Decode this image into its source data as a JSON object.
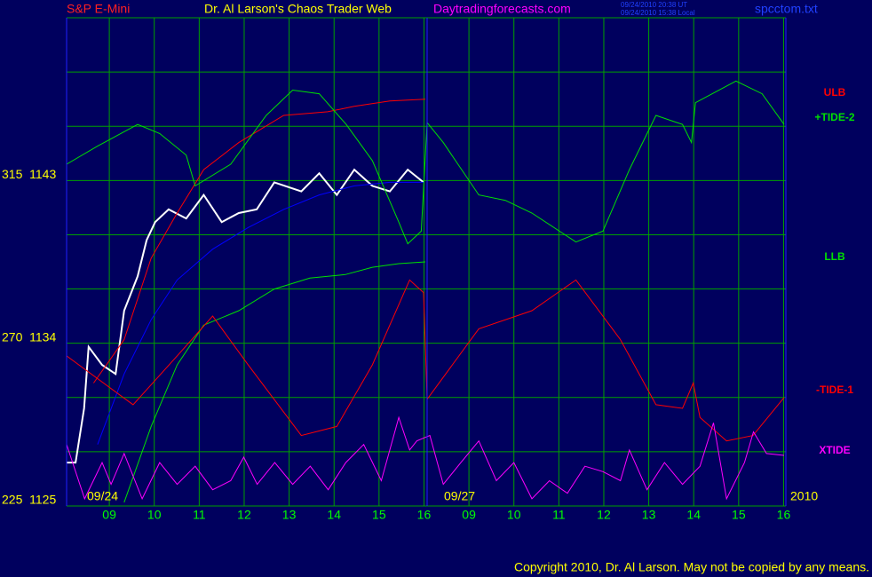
{
  "chart_data": {
    "type": "line",
    "label": "S&P E-Mini",
    "title": "Dr. Al Larson's Chaos Trader Web",
    "site": "Daytradingforecasts.com",
    "timestamps": [
      "09/24/2010 20:38 UT",
      "09/24/2010 15:38 Local"
    ],
    "file": "spcctom.txt",
    "annotations": [
      "09/24",
      "09/27",
      "2010"
    ],
    "copyright": "Copyright 2010, Dr. Al Larson. May not be copied by any means.",
    "xlim": [
      0.05,
      16.05
    ],
    "xticks": [
      {
        "value": 1,
        "label": "09"
      },
      {
        "value": 2,
        "label": "10"
      },
      {
        "value": 3,
        "label": "11"
      },
      {
        "value": 4,
        "label": "12"
      },
      {
        "value": 5,
        "label": "13"
      },
      {
        "value": 6,
        "label": "14"
      },
      {
        "value": 7,
        "label": "15"
      },
      {
        "value": 8,
        "label": "16"
      },
      {
        "value": 9,
        "label": "09"
      },
      {
        "value": 10,
        "label": "10"
      },
      {
        "value": 11,
        "label": "11"
      },
      {
        "value": 12,
        "label": "12"
      },
      {
        "value": 13,
        "label": "13"
      },
      {
        "value": 14,
        "label": "14"
      },
      {
        "value": 15,
        "label": "15"
      },
      {
        "value": 16,
        "label": "16"
      }
    ],
    "ylim": [
      1125,
      1152
    ],
    "yticks": [
      {
        "value": 1125,
        "label": "225  1125"
      },
      {
        "value": 1134,
        "label": "270  1134"
      },
      {
        "value": 1143,
        "label": "315  1143"
      }
    ],
    "ygrid": [
      1128,
      1131,
      1137,
      1140,
      1146,
      1149,
      1152
    ],
    "grid": true,
    "series": [
      {
        "color": "#ffffff",
        "x": [
          0.05,
          0.25,
          0.44,
          0.54,
          0.84,
          1.14,
          1.33,
          1.63,
          1.83,
          2.02,
          2.32,
          2.71,
          3.1,
          3.5,
          3.88,
          4.28,
          4.67,
          5.27,
          5.67,
          6.06,
          6.45,
          6.85,
          7.24,
          7.64,
          7.99
        ],
        "values": [
          1127.4,
          1127.4,
          1130.4,
          1133.8,
          1132.8,
          1132.3,
          1135.8,
          1137.7,
          1139.7,
          1140.7,
          1141.4,
          1140.9,
          1142.2,
          1140.7,
          1141.2,
          1141.4,
          1142.9,
          1142.4,
          1143.4,
          1142.2,
          1143.6,
          1142.7,
          1142.4,
          1143.6,
          1142.9
        ]
      },
      {
        "color": "#0000ff",
        "x": [
          0.74,
          1.33,
          1.93,
          2.51,
          3.3,
          4.09,
          4.88,
          5.67,
          6.45,
          7.24,
          7.99
        ],
        "values": [
          1128.4,
          1132.3,
          1135.3,
          1137.5,
          1139.2,
          1140.4,
          1141.4,
          1142.2,
          1142.7,
          1142.9,
          1142.9
        ]
      },
      {
        "name": "ULB",
        "color": "#ff0000",
        "x": [
          0.65,
          1.33,
          1.93,
          2.51,
          3.1,
          3.88,
          4.88,
          5.86,
          6.45,
          7.24,
          8.03
        ],
        "values": [
          1131.8,
          1134.2,
          1138.7,
          1141.2,
          1143.6,
          1145.1,
          1146.6,
          1146.8,
          1147.1,
          1147.4,
          1147.5
        ]
      },
      {
        "name": "+TIDE-2",
        "color": "#00e000",
        "x": [
          0.05,
          0.74,
          1.63,
          2.12,
          2.71,
          2.91,
          3.7,
          4.49,
          5.08,
          5.67,
          6.27,
          6.85,
          7.44,
          7.64,
          7.94,
          8.07,
          8.43,
          9.22,
          9.81,
          10.4,
          11.38,
          11.98,
          12.57,
          13.16,
          13.75,
          13.95,
          14.04,
          14.94,
          15.52,
          16.01
        ],
        "values": [
          1143.9,
          1144.9,
          1146.1,
          1145.6,
          1144.4,
          1142.7,
          1143.9,
          1146.6,
          1148.0,
          1147.8,
          1146.1,
          1144.1,
          1140.7,
          1139.5,
          1140.2,
          1146.2,
          1145.1,
          1142.2,
          1141.9,
          1141.2,
          1139.6,
          1140.2,
          1143.6,
          1146.6,
          1146.1,
          1145.1,
          1147.3,
          1148.5,
          1147.8,
          1146.1
        ]
      },
      {
        "name": "LLB",
        "color": "#00e000",
        "x": [
          1.33,
          1.93,
          2.51,
          3.1,
          3.88,
          4.67,
          5.46,
          6.25,
          6.85,
          7.44,
          8.03
        ],
        "values": [
          1125.2,
          1129.4,
          1132.8,
          1135.0,
          1135.8,
          1137.0,
          1137.6,
          1137.8,
          1138.2,
          1138.4,
          1138.5
        ]
      },
      {
        "name": "-TIDE-1",
        "color": "#ff0000",
        "x": [
          0.05,
          1.53,
          2.51,
          3.3,
          4.09,
          5.27,
          6.06,
          6.85,
          7.68,
          7.99,
          8.07,
          9.22,
          10.4,
          11.38,
          12.37,
          13.16,
          13.75,
          13.99,
          14.14,
          14.73,
          15.32,
          16.01
        ],
        "values": [
          1133.3,
          1130.6,
          1133.3,
          1135.5,
          1132.8,
          1128.9,
          1129.4,
          1132.8,
          1137.5,
          1136.8,
          1130.9,
          1134.8,
          1135.8,
          1137.5,
          1134.2,
          1130.6,
          1130.4,
          1131.8,
          1129.9,
          1128.6,
          1128.9,
          1131.0
        ]
      },
      {
        "name": "XTIDE",
        "color": "#ff00ff",
        "x": [
          0.05,
          0.45,
          0.84,
          1.04,
          1.33,
          1.73,
          2.12,
          2.51,
          2.91,
          3.3,
          3.7,
          3.99,
          4.29,
          4.68,
          5.08,
          5.47,
          5.87,
          6.26,
          6.66,
          7.05,
          7.44,
          7.68,
          7.84,
          8.13,
          8.43,
          8.82,
          9.22,
          9.61,
          10.0,
          10.4,
          10.79,
          11.19,
          11.58,
          11.98,
          12.37,
          12.57,
          12.96,
          13.35,
          13.75,
          14.14,
          14.44,
          14.73,
          15.13,
          15.33,
          15.62,
          16.01
        ],
        "values": [
          1128.4,
          1125.4,
          1127.4,
          1126.2,
          1127.9,
          1125.4,
          1127.4,
          1126.2,
          1127.2,
          1125.9,
          1126.4,
          1127.7,
          1126.2,
          1127.4,
          1126.2,
          1127.2,
          1125.9,
          1127.4,
          1128.4,
          1126.4,
          1129.9,
          1128.1,
          1128.6,
          1128.9,
          1126.2,
          1127.4,
          1128.6,
          1126.4,
          1127.4,
          1125.4,
          1126.4,
          1125.7,
          1127.2,
          1126.9,
          1126.4,
          1128.1,
          1125.9,
          1127.4,
          1126.2,
          1127.2,
          1129.6,
          1125.4,
          1127.4,
          1129.1,
          1127.9,
          1127.8
        ]
      }
    ]
  }
}
